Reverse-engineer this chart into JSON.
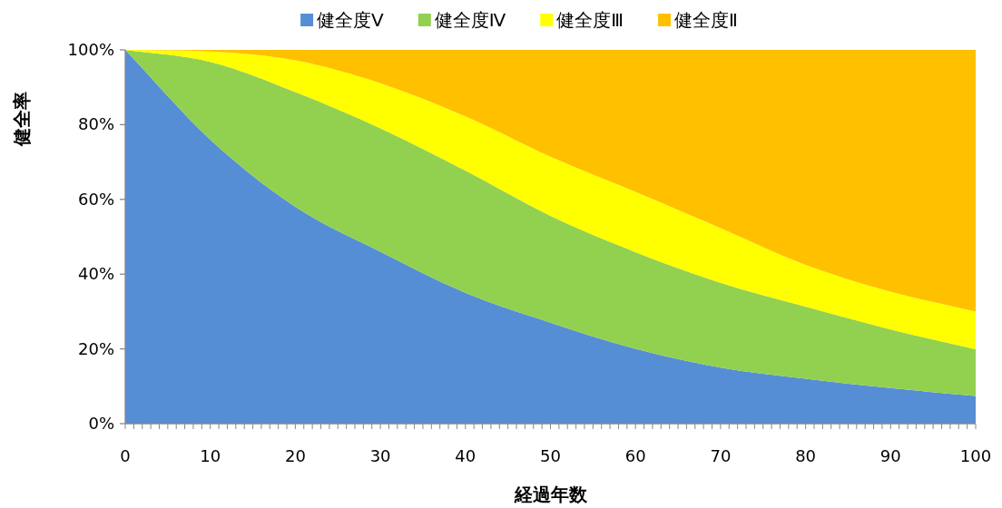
{
  "chart_data": {
    "type": "area",
    "stacked": true,
    "xlabel": "経過年数",
    "ylabel": "健全率",
    "legend": "top",
    "grid": false,
    "x": [
      0,
      10,
      20,
      30,
      40,
      50,
      60,
      70,
      80,
      90,
      100
    ],
    "xlim": [
      0,
      100
    ],
    "xticks": [
      0,
      {
        "value": 1,
        "label": null
      },
      {
        "value": 2,
        "label": null
      },
      {
        "value": 3,
        "label": null
      },
      {
        "value": 4,
        "label": null
      },
      {
        "value": 5,
        "label": null
      },
      {
        "value": 6,
        "label": null
      },
      {
        "value": 7,
        "label": null
      },
      {
        "value": 8,
        "label": null
      },
      {
        "value": 9,
        "label": null
      },
      10,
      {
        "value": 11,
        "label": null
      },
      {
        "value": 12,
        "label": null
      },
      {
        "value": 13,
        "label": null
      },
      {
        "value": 14,
        "label": null
      },
      {
        "value": 15,
        "label": null
      },
      {
        "value": 16,
        "label": null
      },
      {
        "value": 17,
        "label": null
      },
      {
        "value": 18,
        "label": null
      },
      {
        "value": 19,
        "label": null
      },
      20,
      {
        "value": 21,
        "label": null
      },
      {
        "value": 22,
        "label": null
      },
      {
        "value": 23,
        "label": null
      },
      {
        "value": 24,
        "label": null
      },
      {
        "value": 25,
        "label": null
      },
      {
        "value": 26,
        "label": null
      },
      {
        "value": 27,
        "label": null
      },
      {
        "value": 28,
        "label": null
      },
      {
        "value": 29,
        "label": null
      },
      30,
      {
        "value": 31,
        "label": null
      },
      {
        "value": 32,
        "label": null
      },
      {
        "value": 33,
        "label": null
      },
      {
        "value": 34,
        "label": null
      },
      {
        "value": 35,
        "label": null
      },
      {
        "value": 36,
        "label": null
      },
      {
        "value": 37,
        "label": null
      },
      {
        "value": 38,
        "label": null
      },
      {
        "value": 39,
        "label": null
      },
      40,
      {
        "value": 41,
        "label": null
      },
      {
        "value": 42,
        "label": null
      },
      {
        "value": 43,
        "label": null
      },
      {
        "value": 44,
        "label": null
      },
      {
        "value": 45,
        "label": null
      },
      {
        "value": 46,
        "label": null
      },
      {
        "value": 47,
        "label": null
      },
      {
        "value": 48,
        "label": null
      },
      {
        "value": 49,
        "label": null
      },
      50,
      {
        "value": 51,
        "label": null
      },
      {
        "value": 52,
        "label": null
      },
      {
        "value": 53,
        "label": null
      },
      {
        "value": 54,
        "label": null
      },
      {
        "value": 55,
        "label": null
      },
      {
        "value": 56,
        "label": null
      },
      {
        "value": 57,
        "label": null
      },
      {
        "value": 58,
        "label": null
      },
      {
        "value": 59,
        "label": null
      },
      60,
      {
        "value": 61,
        "label": null
      },
      {
        "value": 62,
        "label": null
      },
      {
        "value": 63,
        "label": null
      },
      {
        "value": 64,
        "label": null
      },
      {
        "value": 65,
        "label": null
      },
      {
        "value": 66,
        "label": null
      },
      {
        "value": 67,
        "label": null
      },
      {
        "value": 68,
        "label": null
      },
      {
        "value": 69,
        "label": null
      },
      70,
      {
        "value": 71,
        "label": null
      },
      {
        "value": 72,
        "label": null
      },
      {
        "value": 73,
        "label": null
      },
      {
        "value": 74,
        "label": null
      },
      {
        "value": 75,
        "label": null
      },
      {
        "value": 76,
        "label": null
      },
      {
        "value": 77,
        "label": null
      },
      {
        "value": 78,
        "label": null
      },
      {
        "value": 79,
        "label": null
      },
      80,
      {
        "value": 81,
        "label": null
      },
      {
        "value": 82,
        "label": null
      },
      {
        "value": 83,
        "label": null
      },
      {
        "value": 84,
        "label": null
      },
      {
        "value": 85,
        "label": null
      },
      {
        "value": 86,
        "label": null
      },
      {
        "value": 87,
        "label": null
      },
      {
        "value": 88,
        "label": null
      },
      {
        "value": 89,
        "label": null
      },
      90,
      {
        "value": 91,
        "label": null
      },
      {
        "value": 92,
        "label": null
      },
      {
        "value": 93,
        "label": null
      },
      {
        "value": 94,
        "label": null
      },
      {
        "value": 95,
        "label": null
      },
      {
        "value": 96,
        "label": null
      },
      {
        "value": 97,
        "label": null
      },
      {
        "value": 98,
        "label": null
      },
      {
        "value": 99,
        "label": null
      },
      100
    ],
    "ylim": [
      0,
      100
    ],
    "yticks": [
      {
        "value": 0,
        "label": "0%"
      },
      {
        "value": 20,
        "label": "20%"
      },
      {
        "value": 40,
        "label": "40%"
      },
      {
        "value": 60,
        "label": "60%"
      },
      {
        "value": 80,
        "label": "80%"
      },
      {
        "value": 100,
        "label": "100%"
      }
    ],
    "series": [
      {
        "name": "健全度Ⅴ",
        "color": "#558ed5",
        "values": [
          100,
          76,
          58,
          46,
          35,
          27,
          20,
          15,
          12,
          9.5,
          7.4
        ]
      },
      {
        "name": "健全度Ⅳ",
        "color": "#92d050",
        "values": [
          0,
          20.8,
          30.7,
          33,
          32.7,
          28.6,
          25.9,
          22.7,
          19.3,
          15.7,
          12.5
        ]
      },
      {
        "name": "健全度Ⅲ",
        "color": "#ffff00",
        "values": [
          0,
          2.8,
          8.5,
          12.1,
          14.5,
          15.8,
          16.1,
          14.6,
          11.2,
          10.1,
          10.1
        ]
      },
      {
        "name": "健全度Ⅱ",
        "color": "#ffc000",
        "values": [
          0,
          0.4,
          2.8,
          8.9,
          17.8,
          28.6,
          38,
          47.7,
          57.5,
          64.7,
          70
        ]
      }
    ]
  }
}
